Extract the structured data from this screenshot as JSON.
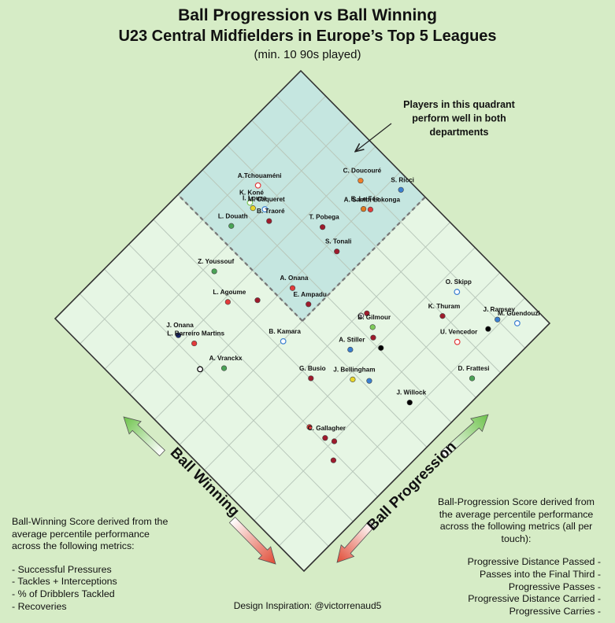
{
  "title": "Ball Progression vs Ball Winning",
  "subtitle": "U23 Central Midfielders in Europe’s Top 5 Leagues",
  "subtitle2": "(min. 10 90s played)",
  "annotation": "Players in this quadrant perform well in both departments",
  "credit": "Design Inspiration: @victorrenaud5",
  "left_note": {
    "text": "Ball-Winning Score derived from the average percentile performance across the following metrics:",
    "items": [
      "- Successful Pressures",
      "- Tackles + Interceptions",
      "- % of Dribblers Tackled",
      "- Recoveries"
    ]
  },
  "right_note": {
    "text": "Ball-Progression Score derived from the average percentile performance across the following metrics (all per touch):",
    "items": [
      "Progressive Distance Passed -",
      "Passes into the Final Third -",
      "Progressive Passes -",
      "Progressive Distance Carried -",
      "Progressive Carries -"
    ]
  },
  "chart_data": {
    "type": "scatter",
    "title": "Ball Progression vs Ball Winning",
    "xlabel": "Ball Progression",
    "ylabel": "Ball Winning",
    "xlim": [
      0,
      100
    ],
    "ylim": [
      0,
      100
    ],
    "grid": true,
    "points": [
      {
        "x": 68.2,
        "y": 85.8,
        "label": "A.Tchouaméni",
        "color": "#e23b3b",
        "hollow": true
      },
      {
        "x": 63.1,
        "y": 84.0,
        "label": "K. Koné",
        "color": "#7ecb5a",
        "hollow": true
      },
      {
        "x": 54.6,
        "y": 83.1,
        "label": "L. Douath",
        "color": "#4aa356",
        "hollow": false
      },
      {
        "x": 64.8,
        "y": 79.7,
        "label": "M. Caqueret",
        "color": "#3a7fd0",
        "hollow": true
      },
      {
        "x": 62.6,
        "y": 82.3,
        "label": "I. Louza",
        "color": "#e8d72a",
        "hollow": false
      },
      {
        "x": 63.3,
        "y": 76.5,
        "label": "B. Traoré",
        "color": "#9e1b2c",
        "hollow": false
      },
      {
        "x": 90.1,
        "y": 66.2,
        "label": "C. Doucouré",
        "color": "#f07f2a",
        "hollow": false
      },
      {
        "x": 96.5,
        "y": 56.3,
        "label": "S. Ricci",
        "color": "#3a7fd0",
        "hollow": false
      },
      {
        "x": 85.0,
        "y": 60.0,
        "label": "E. Le Fée",
        "color": "#e07a20",
        "hollow": false
      },
      {
        "x": 86.3,
        "y": 58.5,
        "label": "A. Sambi Lokonga",
        "color": "#e23b3b",
        "hollow": false
      },
      {
        "x": 73.0,
        "y": 64.6,
        "label": "T. Pobega",
        "color": "#9e1b2c",
        "hollow": false
      },
      {
        "x": 71.0,
        "y": 56.9,
        "label": "S. Tonali",
        "color": "#9e1b2c",
        "hollow": false
      },
      {
        "x": 42.0,
        "y": 77.5,
        "label": "Z. Youssouf",
        "color": "#4aa356",
        "hollow": false
      },
      {
        "x": 38.6,
        "y": 68.7,
        "label": "L. Agoume",
        "color": "#e23b3b",
        "hollow": false
      },
      {
        "x": 54.6,
        "y": 58.5,
        "label": "A. Onana",
        "color": "#e23b3b",
        "hollow": false
      },
      {
        "x": 45.0,
        "y": 63.1,
        "label": "",
        "color": "#9e1b2c",
        "hollow": false
      },
      {
        "x": 54.6,
        "y": 52.1,
        "label": "E. Ampadu",
        "color": "#9e1b2c",
        "hollow": false
      },
      {
        "x": 21.8,
        "y": 72.0,
        "label": "J. Onana",
        "color": "#1a2a6e",
        "hollow": false
      },
      {
        "x": 23.4,
        "y": 67.2,
        "label": "L. Barreiro Martins",
        "color": "#e23b3b",
        "hollow": false
      },
      {
        "x": 42.0,
        "y": 49.8,
        "label": "B. Kamara",
        "color": "#3a7fd0",
        "hollow": true
      },
      {
        "x": 63.0,
        "y": 39.3,
        "label": "",
        "color": "#555555",
        "hollow": true
      },
      {
        "x": 64.7,
        "y": 38.6,
        "label": "",
        "color": "#9e1b2c",
        "hollow": false
      },
      {
        "x": 63.1,
        "y": 34.7,
        "label": "B. Gilmour",
        "color": "#7ecb5a",
        "hollow": false
      },
      {
        "x": 87.4,
        "y": 24.8,
        "label": "O. Skipp",
        "color": "#3a7fd0",
        "hollow": true
      },
      {
        "x": 79.6,
        "y": 22.9,
        "label": "K. Thuram",
        "color": "#9e1b2c",
        "hollow": false
      },
      {
        "x": 90.1,
        "y": 11.2,
        "label": "J. Ramsey",
        "color": "#3a7fd0",
        "hollow": false
      },
      {
        "x": 86.3,
        "y": 11.2,
        "label": "",
        "color": "#000000",
        "hollow": false
      },
      {
        "x": 93.4,
        "y": 6.5,
        "label": "M. Guendouzi",
        "color": "#3a7fd0",
        "hollow": true
      },
      {
        "x": 19.4,
        "y": 60.9,
        "label": "",
        "color": "#000000",
        "hollow": true
      },
      {
        "x": 24.5,
        "y": 56.3,
        "label": "A. Vranckx",
        "color": "#4aa356",
        "hollow": false
      },
      {
        "x": 54.0,
        "y": 34.7,
        "label": "A. Stiller",
        "color": "#3a7fd0",
        "hollow": false
      },
      {
        "x": 61.1,
        "y": 32.5,
        "label": "",
        "color": "#9e1b2c",
        "hollow": false
      },
      {
        "x": 60.6,
        "y": 28.9,
        "label": "",
        "color": "#000000",
        "hollow": false
      },
      {
        "x": 77.4,
        "y": 14.8,
        "label": "U. Vencedor",
        "color": "#e23b3b",
        "hollow": true
      },
      {
        "x": 73.1,
        "y": 4.6,
        "label": "D. Frattesi",
        "color": "#4aa356",
        "hollow": false
      },
      {
        "x": 40.2,
        "y": 36.9,
        "label": "G. Busio",
        "color": "#9e1b2c",
        "hollow": false
      },
      {
        "x": 48.5,
        "y": 28.3,
        "label": "J. Bellingham",
        "color": "#e8d72a",
        "hollow": false
      },
      {
        "x": 51.6,
        "y": 24.7,
        "label": "",
        "color": "#3a7fd0",
        "hollow": false
      },
      {
        "x": 55.5,
        "y": 12.3,
        "label": "J. Willock",
        "color": "#000000",
        "hollow": false
      },
      {
        "x": 30.1,
        "y": 27.5,
        "label": "",
        "color": "#e23b3b",
        "hollow": false
      },
      {
        "x": 31.1,
        "y": 22.2,
        "label": "C. Gallagher",
        "color": "#9e1b2c",
        "hollow": false
      },
      {
        "x": 32.3,
        "y": 19.7,
        "label": "",
        "color": "#9e1b2c",
        "hollow": false
      },
      {
        "x": 28.3,
        "y": 16.1,
        "label": "",
        "color": "#9e1b2c",
        "hollow": false
      }
    ],
    "quadrant_threshold": {
      "x": 50,
      "y": 50
    },
    "highlight_quadrant": "top"
  }
}
